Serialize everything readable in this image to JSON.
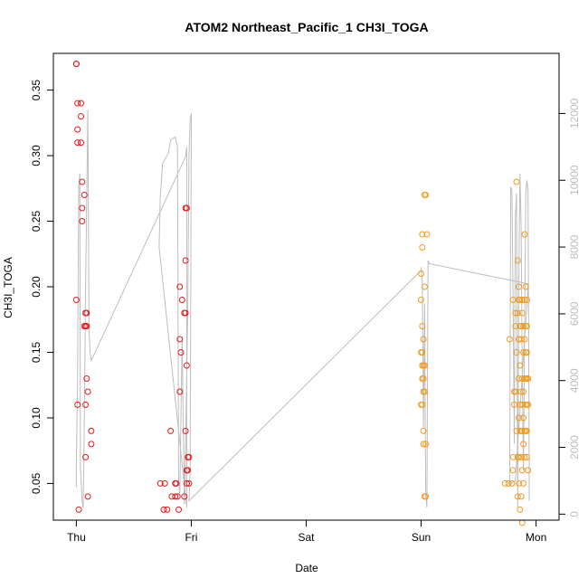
{
  "chart_data": {
    "type": "scatter",
    "title": "ATOM2 Northeast_Pacific_1 CH3I_TOGA",
    "xlabel": "Date",
    "ylabel": "CH3I_TOGA",
    "x_ticks": [
      {
        "v": 0,
        "label": "Thu"
      },
      {
        "v": 1,
        "label": "Fri"
      },
      {
        "v": 2,
        "label": "Sat"
      },
      {
        "v": 3,
        "label": "Sun"
      },
      {
        "v": 4,
        "label": "Mon"
      }
    ],
    "y_ticks": [
      0.05,
      0.1,
      0.15,
      0.2,
      0.25,
      0.3,
      0.35
    ],
    "y_tick_labels": [
      "0.05",
      "0.10",
      "0.15",
      "0.20",
      "0.25",
      "0.30",
      "0.35"
    ],
    "y2_ticks": [
      0,
      2000,
      4000,
      6000,
      8000,
      10000,
      12000
    ],
    "y2_tick_labels": [
      "0",
      "2000",
      "4000",
      "6000",
      "8000",
      "10000",
      "12000"
    ],
    "xlim": [
      -0.2,
      4.2
    ],
    "ylim": [
      0.022,
      0.378
    ],
    "y2lim": [
      -180,
      13800
    ],
    "grid": false,
    "series": [
      {
        "color": "#e8191d",
        "points": [
          [
            0.0,
            0.37
          ],
          [
            0.0,
            0.37
          ],
          [
            0.01,
            0.34
          ],
          [
            0.01,
            0.32
          ],
          [
            0.01,
            0.31
          ],
          [
            0.0,
            0.19
          ],
          [
            0.01,
            0.11
          ],
          [
            0.02,
            0.03
          ],
          [
            0.04,
            0.34
          ],
          [
            0.04,
            0.33
          ],
          [
            0.04,
            0.31
          ],
          [
            0.05,
            0.28
          ],
          [
            0.05,
            0.26
          ],
          [
            0.05,
            0.25
          ],
          [
            0.07,
            0.27
          ],
          [
            0.07,
            0.17
          ],
          [
            0.08,
            0.17
          ],
          [
            0.08,
            0.18
          ],
          [
            0.09,
            0.18
          ],
          [
            0.09,
            0.17
          ],
          [
            0.08,
            0.11
          ],
          [
            0.09,
            0.13
          ],
          [
            0.1,
            0.12
          ],
          [
            0.08,
            0.07
          ],
          [
            0.1,
            0.04
          ],
          [
            0.13,
            0.09
          ],
          [
            0.13,
            0.08
          ],
          [
            0.73,
            0.05
          ],
          [
            0.77,
            0.05
          ],
          [
            0.76,
            0.03
          ],
          [
            0.79,
            0.03
          ],
          [
            0.82,
            0.09
          ],
          [
            0.83,
            0.04
          ],
          [
            0.86,
            0.04
          ],
          [
            0.86,
            0.05
          ],
          [
            0.87,
            0.05
          ],
          [
            0.88,
            0.04
          ],
          [
            0.89,
            0.03
          ],
          [
            0.9,
            0.12
          ],
          [
            0.9,
            0.16
          ],
          [
            0.91,
            0.15
          ],
          [
            0.9,
            0.2
          ],
          [
            0.92,
            0.19
          ],
          [
            0.94,
            0.18
          ],
          [
            0.95,
            0.18
          ],
          [
            0.95,
            0.22
          ],
          [
            0.95,
            0.26
          ],
          [
            0.96,
            0.26
          ],
          [
            0.96,
            0.14
          ],
          [
            0.95,
            0.09
          ],
          [
            0.94,
            0.04
          ],
          [
            0.96,
            0.05
          ],
          [
            0.97,
            0.06
          ],
          [
            0.97,
            0.07
          ],
          [
            0.98,
            0.07
          ],
          [
            0.98,
            0.05
          ],
          [
            0.96,
            0.06
          ]
        ]
      },
      {
        "color": "#f59a1e",
        "points": [
          [
            3.0,
            0.21
          ],
          [
            3.01,
            0.24
          ],
          [
            3.01,
            0.23
          ],
          [
            3.0,
            0.19
          ],
          [
            3.01,
            0.17
          ],
          [
            3.0,
            0.15
          ],
          [
            3.01,
            0.14
          ],
          [
            3.01,
            0.13
          ],
          [
            3.0,
            0.11
          ],
          [
            3.01,
            0.11
          ],
          [
            3.02,
            0.12
          ],
          [
            3.03,
            0.12
          ],
          [
            3.02,
            0.13
          ],
          [
            3.02,
            0.14
          ],
          [
            3.03,
            0.14
          ],
          [
            3.02,
            0.16
          ],
          [
            3.03,
            0.27
          ],
          [
            3.04,
            0.27
          ],
          [
            3.05,
            0.24
          ],
          [
            3.02,
            0.09
          ],
          [
            3.02,
            0.08
          ],
          [
            3.04,
            0.08
          ],
          [
            3.03,
            0.04
          ],
          [
            3.04,
            0.04
          ],
          [
            3.03,
            0.2
          ],
          [
            3.01,
            0.15
          ],
          [
            3.73,
            0.05
          ],
          [
            3.76,
            0.05
          ],
          [
            3.77,
            0.16
          ],
          [
            3.79,
            0.05
          ],
          [
            3.8,
            0.07
          ],
          [
            3.8,
            0.06
          ],
          [
            3.81,
            0.11
          ],
          [
            3.81,
            0.12
          ],
          [
            3.8,
            0.19
          ],
          [
            3.82,
            0.18
          ],
          [
            3.82,
            0.17
          ],
          [
            3.82,
            0.12
          ],
          [
            3.83,
            0.28
          ],
          [
            3.83,
            0.15
          ],
          [
            3.83,
            0.09
          ],
          [
            3.84,
            0.22
          ],
          [
            3.84,
            0.18
          ],
          [
            3.84,
            0.07
          ],
          [
            3.84,
            0.04
          ],
          [
            3.85,
            0.2
          ],
          [
            3.85,
            0.19
          ],
          [
            3.85,
            0.16
          ],
          [
            3.85,
            0.13
          ],
          [
            3.85,
            0.1
          ],
          [
            3.85,
            0.07
          ],
          [
            3.85,
            0.05
          ],
          [
            3.86,
            0.19
          ],
          [
            3.86,
            0.17
          ],
          [
            3.86,
            0.14
          ],
          [
            3.86,
            0.11
          ],
          [
            3.86,
            0.09
          ],
          [
            3.86,
            0.03
          ],
          [
            3.87,
            0.17
          ],
          [
            3.87,
            0.16
          ],
          [
            3.87,
            0.12
          ],
          [
            3.87,
            0.09
          ],
          [
            3.87,
            0.07
          ],
          [
            3.87,
            0.04
          ],
          [
            3.88,
            0.19
          ],
          [
            3.88,
            0.18
          ],
          [
            3.88,
            0.13
          ],
          [
            3.88,
            0.11
          ],
          [
            3.88,
            0.09
          ],
          [
            3.88,
            0.06
          ],
          [
            3.89,
            0.17
          ],
          [
            3.89,
            0.15
          ],
          [
            3.89,
            0.12
          ],
          [
            3.89,
            0.1
          ],
          [
            3.89,
            0.08
          ],
          [
            3.89,
            0.05
          ],
          [
            3.9,
            0.24
          ],
          [
            3.9,
            0.19
          ],
          [
            3.9,
            0.16
          ],
          [
            3.9,
            0.13
          ],
          [
            3.9,
            0.09
          ],
          [
            3.9,
            0.07
          ],
          [
            3.91,
            0.2
          ],
          [
            3.91,
            0.17
          ],
          [
            3.91,
            0.15
          ],
          [
            3.91,
            0.13
          ],
          [
            3.91,
            0.11
          ],
          [
            3.91,
            0.09
          ],
          [
            3.92,
            0.19
          ],
          [
            3.92,
            0.17
          ],
          [
            3.92,
            0.15
          ],
          [
            3.92,
            0.13
          ],
          [
            3.92,
            0.11
          ],
          [
            3.92,
            0.09
          ],
          [
            3.93,
            0.13
          ],
          [
            3.93,
            0.11
          ],
          [
            3.93,
            0.06
          ],
          [
            3.92,
            0.07
          ],
          [
            3.88,
            0.02
          ]
        ]
      }
    ],
    "secondary_line": {
      "color": "#bdbdbd",
      "axis": "right",
      "points": [
        [
          0.0,
          800
        ],
        [
          0.0,
          1600
        ],
        [
          0.01,
          3800
        ],
        [
          0.02,
          9800
        ],
        [
          0.03,
          10200
        ],
        [
          0.035,
          1400
        ],
        [
          0.04,
          1100
        ],
        [
          0.05,
          400
        ],
        [
          0.06,
          200
        ],
        [
          0.07,
          3000
        ],
        [
          0.08,
          6800
        ],
        [
          0.1,
          12100
        ],
        [
          0.11,
          5500
        ],
        [
          0.12,
          4800
        ],
        [
          0.13,
          4600
        ],
        [
          0.95,
          10700
        ],
        [
          0.96,
          11000
        ],
        [
          0.96,
          200
        ],
        [
          0.72,
          8000
        ],
        [
          0.73,
          9500
        ],
        [
          0.75,
          10500
        ],
        [
          0.8,
          10800
        ],
        [
          0.82,
          11200
        ],
        [
          0.86,
          11300
        ],
        [
          0.88,
          11000
        ],
        [
          0.89,
          1000
        ],
        [
          0.9,
          600
        ],
        [
          0.92,
          5300
        ],
        [
          0.94,
          300
        ],
        [
          0.95,
          2000
        ],
        [
          0.97,
          6200
        ],
        [
          0.98,
          10700
        ],
        [
          0.99,
          11800
        ],
        [
          1.0,
          12000
        ],
        [
          0.99,
          1300
        ],
        [
          0.98,
          400
        ],
        [
          3.0,
          7300
        ],
        [
          3.0,
          7400
        ],
        [
          3.01,
          7000
        ],
        [
          3.02,
          2600
        ],
        [
          3.03,
          6300
        ],
        [
          3.04,
          600
        ],
        [
          3.05,
          200
        ],
        [
          3.06,
          7600
        ],
        [
          3.07,
          7500
        ],
        [
          3.93,
          6900
        ],
        [
          3.93,
          6800
        ],
        [
          3.82,
          1000
        ],
        [
          3.77,
          900
        ],
        [
          3.78,
          9800
        ],
        [
          3.79,
          9700
        ],
        [
          3.8,
          6400
        ],
        [
          3.81,
          2100
        ],
        [
          3.82,
          8900
        ],
        [
          3.83,
          9600
        ],
        [
          3.84,
          200
        ],
        [
          3.85,
          6900
        ],
        [
          3.86,
          10200
        ],
        [
          3.87,
          8600
        ],
        [
          3.88,
          4400
        ],
        [
          3.89,
          1300
        ],
        [
          3.9,
          5300
        ],
        [
          3.91,
          9600
        ],
        [
          3.92,
          10000
        ],
        [
          3.93,
          9700
        ],
        [
          3.94,
          1500
        ],
        [
          3.94,
          400
        ]
      ]
    }
  }
}
